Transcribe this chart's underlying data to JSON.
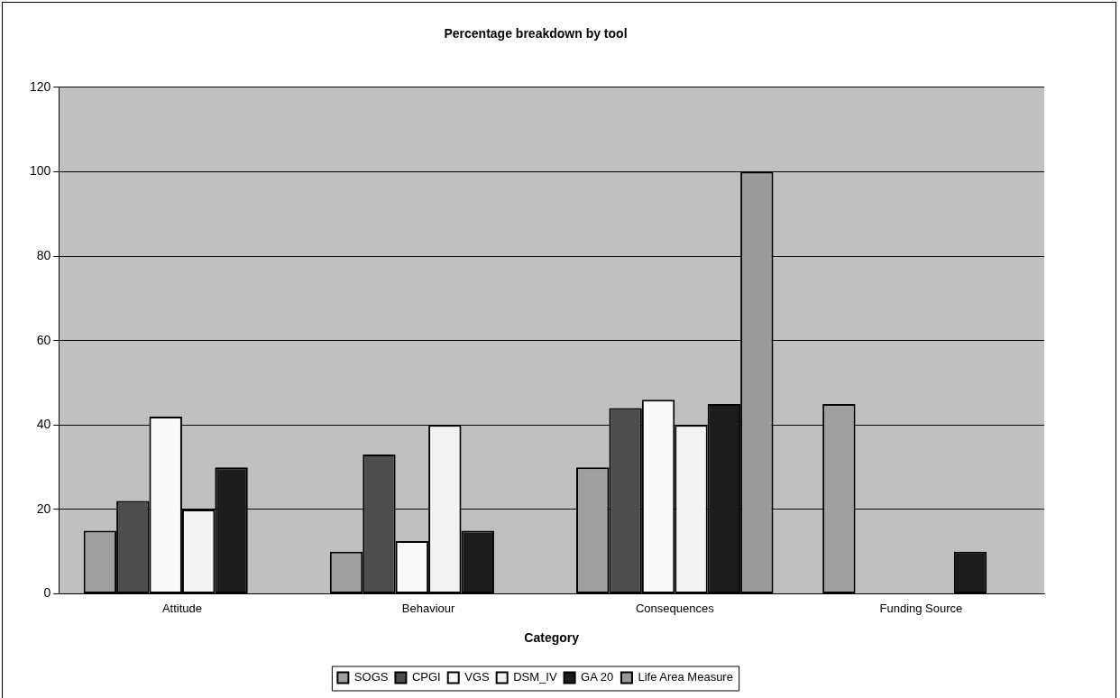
{
  "chart_data": {
    "type": "bar",
    "title": "Percentage breakdown by tool",
    "xlabel": "Category",
    "categories": [
      "Attitude",
      "Behaviour",
      "Consequences",
      "Funding Source"
    ],
    "series": [
      {
        "name": "SOGS",
        "color": "#a0a0a0",
        "values": [
          15,
          10,
          30,
          45
        ]
      },
      {
        "name": "CPGI",
        "color": "#4d4d4d",
        "values": [
          22,
          33,
          44,
          null
        ]
      },
      {
        "name": "VGS",
        "color": "#fafafa",
        "values": [
          42,
          12.5,
          46,
          null
        ]
      },
      {
        "name": "DSM_IV",
        "color": "#f2f2f2",
        "values": [
          20,
          40,
          40,
          null
        ]
      },
      {
        "name": "GA 20",
        "color": "#1c1c1c",
        "values": [
          30,
          15,
          45,
          10
        ]
      },
      {
        "name": "Life Area Measure",
        "color": "#9a9a9a",
        "values": [
          null,
          null,
          100,
          null
        ]
      }
    ],
    "ylim": [
      0,
      120
    ],
    "yticks": [
      0,
      20,
      40,
      60,
      80,
      100,
      120
    ],
    "grid": "y",
    "legend": "bottom"
  }
}
